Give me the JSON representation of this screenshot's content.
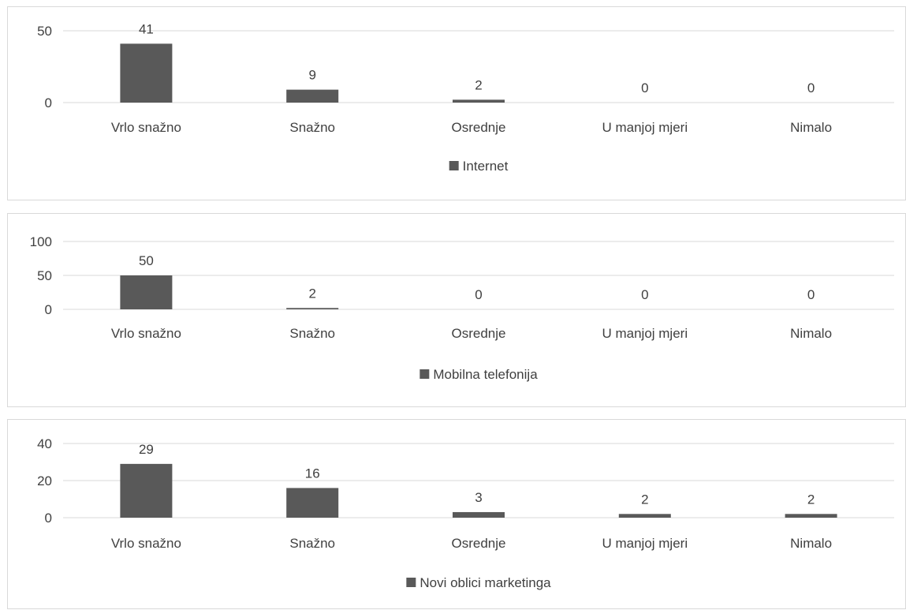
{
  "colors": {
    "bar": "#595959",
    "grid": "#d9d9d9",
    "text": "#404040"
  },
  "chart_data": [
    {
      "type": "bar",
      "categories": [
        "Vrlo snažno",
        "Snažno",
        "Osrednje",
        "U manjoj mjeri",
        "Nimalo"
      ],
      "series": [
        {
          "name": "Internet",
          "values": [
            41,
            9,
            2,
            0,
            0
          ]
        }
      ],
      "yticks": [
        0,
        50
      ],
      "ylim": [
        0,
        50
      ],
      "grid": true,
      "legend": "bottom"
    },
    {
      "type": "bar",
      "categories": [
        "Vrlo snažno",
        "Snažno",
        "Osrednje",
        "U manjoj mjeri",
        "Nimalo"
      ],
      "series": [
        {
          "name": "Mobilna telefonija",
          "values": [
            50,
            2,
            0,
            0,
            0
          ]
        }
      ],
      "yticks": [
        0,
        50,
        100
      ],
      "ylim": [
        0,
        100
      ],
      "grid": true,
      "legend": "bottom"
    },
    {
      "type": "bar",
      "categories": [
        "Vrlo snažno",
        "Snažno",
        "Osrednje",
        "U manjoj mjeri",
        "Nimalo"
      ],
      "series": [
        {
          "name": "Novi oblici marketinga",
          "values": [
            29,
            16,
            3,
            2,
            2
          ]
        }
      ],
      "yticks": [
        0,
        20,
        40
      ],
      "ylim": [
        0,
        40
      ],
      "grid": true,
      "legend": "bottom"
    }
  ]
}
